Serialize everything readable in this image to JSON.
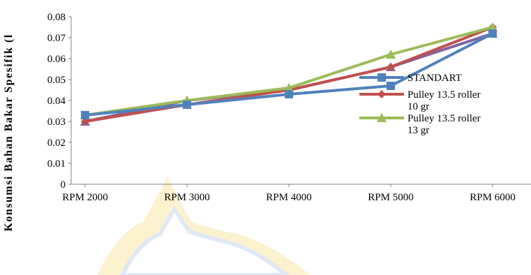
{
  "chart_data": {
    "type": "line",
    "ylabel": "Konsumsi Bahan Bakar Spesifik (l",
    "xlabel": "",
    "categories": [
      "RPM 2000",
      "RPM 3000",
      "RPM 4000",
      "RPM 5000",
      "RPM 6000"
    ],
    "ylim": [
      0,
      0.08
    ],
    "yticks": [
      "0",
      "0.01",
      "0.02",
      "0.03",
      "0.04",
      "0.05",
      "0.06",
      "0.07",
      "0.08"
    ],
    "grid": false,
    "legend_position": "right",
    "series": [
      {
        "name": "STANDART",
        "legend_lines": [
          "STANDART"
        ],
        "color": "#4F81BD",
        "marker": "square",
        "values": [
          0.033,
          0.038,
          0.043,
          0.047,
          0.072
        ]
      },
      {
        "name": "Pulley 13.5 roller 10 gr",
        "legend_lines": [
          "Pulley 13.5 roller",
          "10 gr"
        ],
        "color": "#C0504D",
        "marker": "diamond",
        "values": [
          0.03,
          0.038,
          0.045,
          0.056,
          0.075
        ]
      },
      {
        "name": "Pulley 13.5 roller 13 gr",
        "legend_lines": [
          "Pulley 13.5 roller",
          "13 gr"
        ],
        "color": "#9BBB59",
        "marker": "triangle",
        "values": [
          0.033,
          0.04,
          0.046,
          0.062,
          0.075
        ]
      },
      {
        "name": "",
        "legend_lines": [],
        "color": "#8064A2",
        "marker": "triangle",
        "values": [
          0.03,
          0.04,
          0.045,
          0.056,
          0.072
        ]
      }
    ]
  }
}
